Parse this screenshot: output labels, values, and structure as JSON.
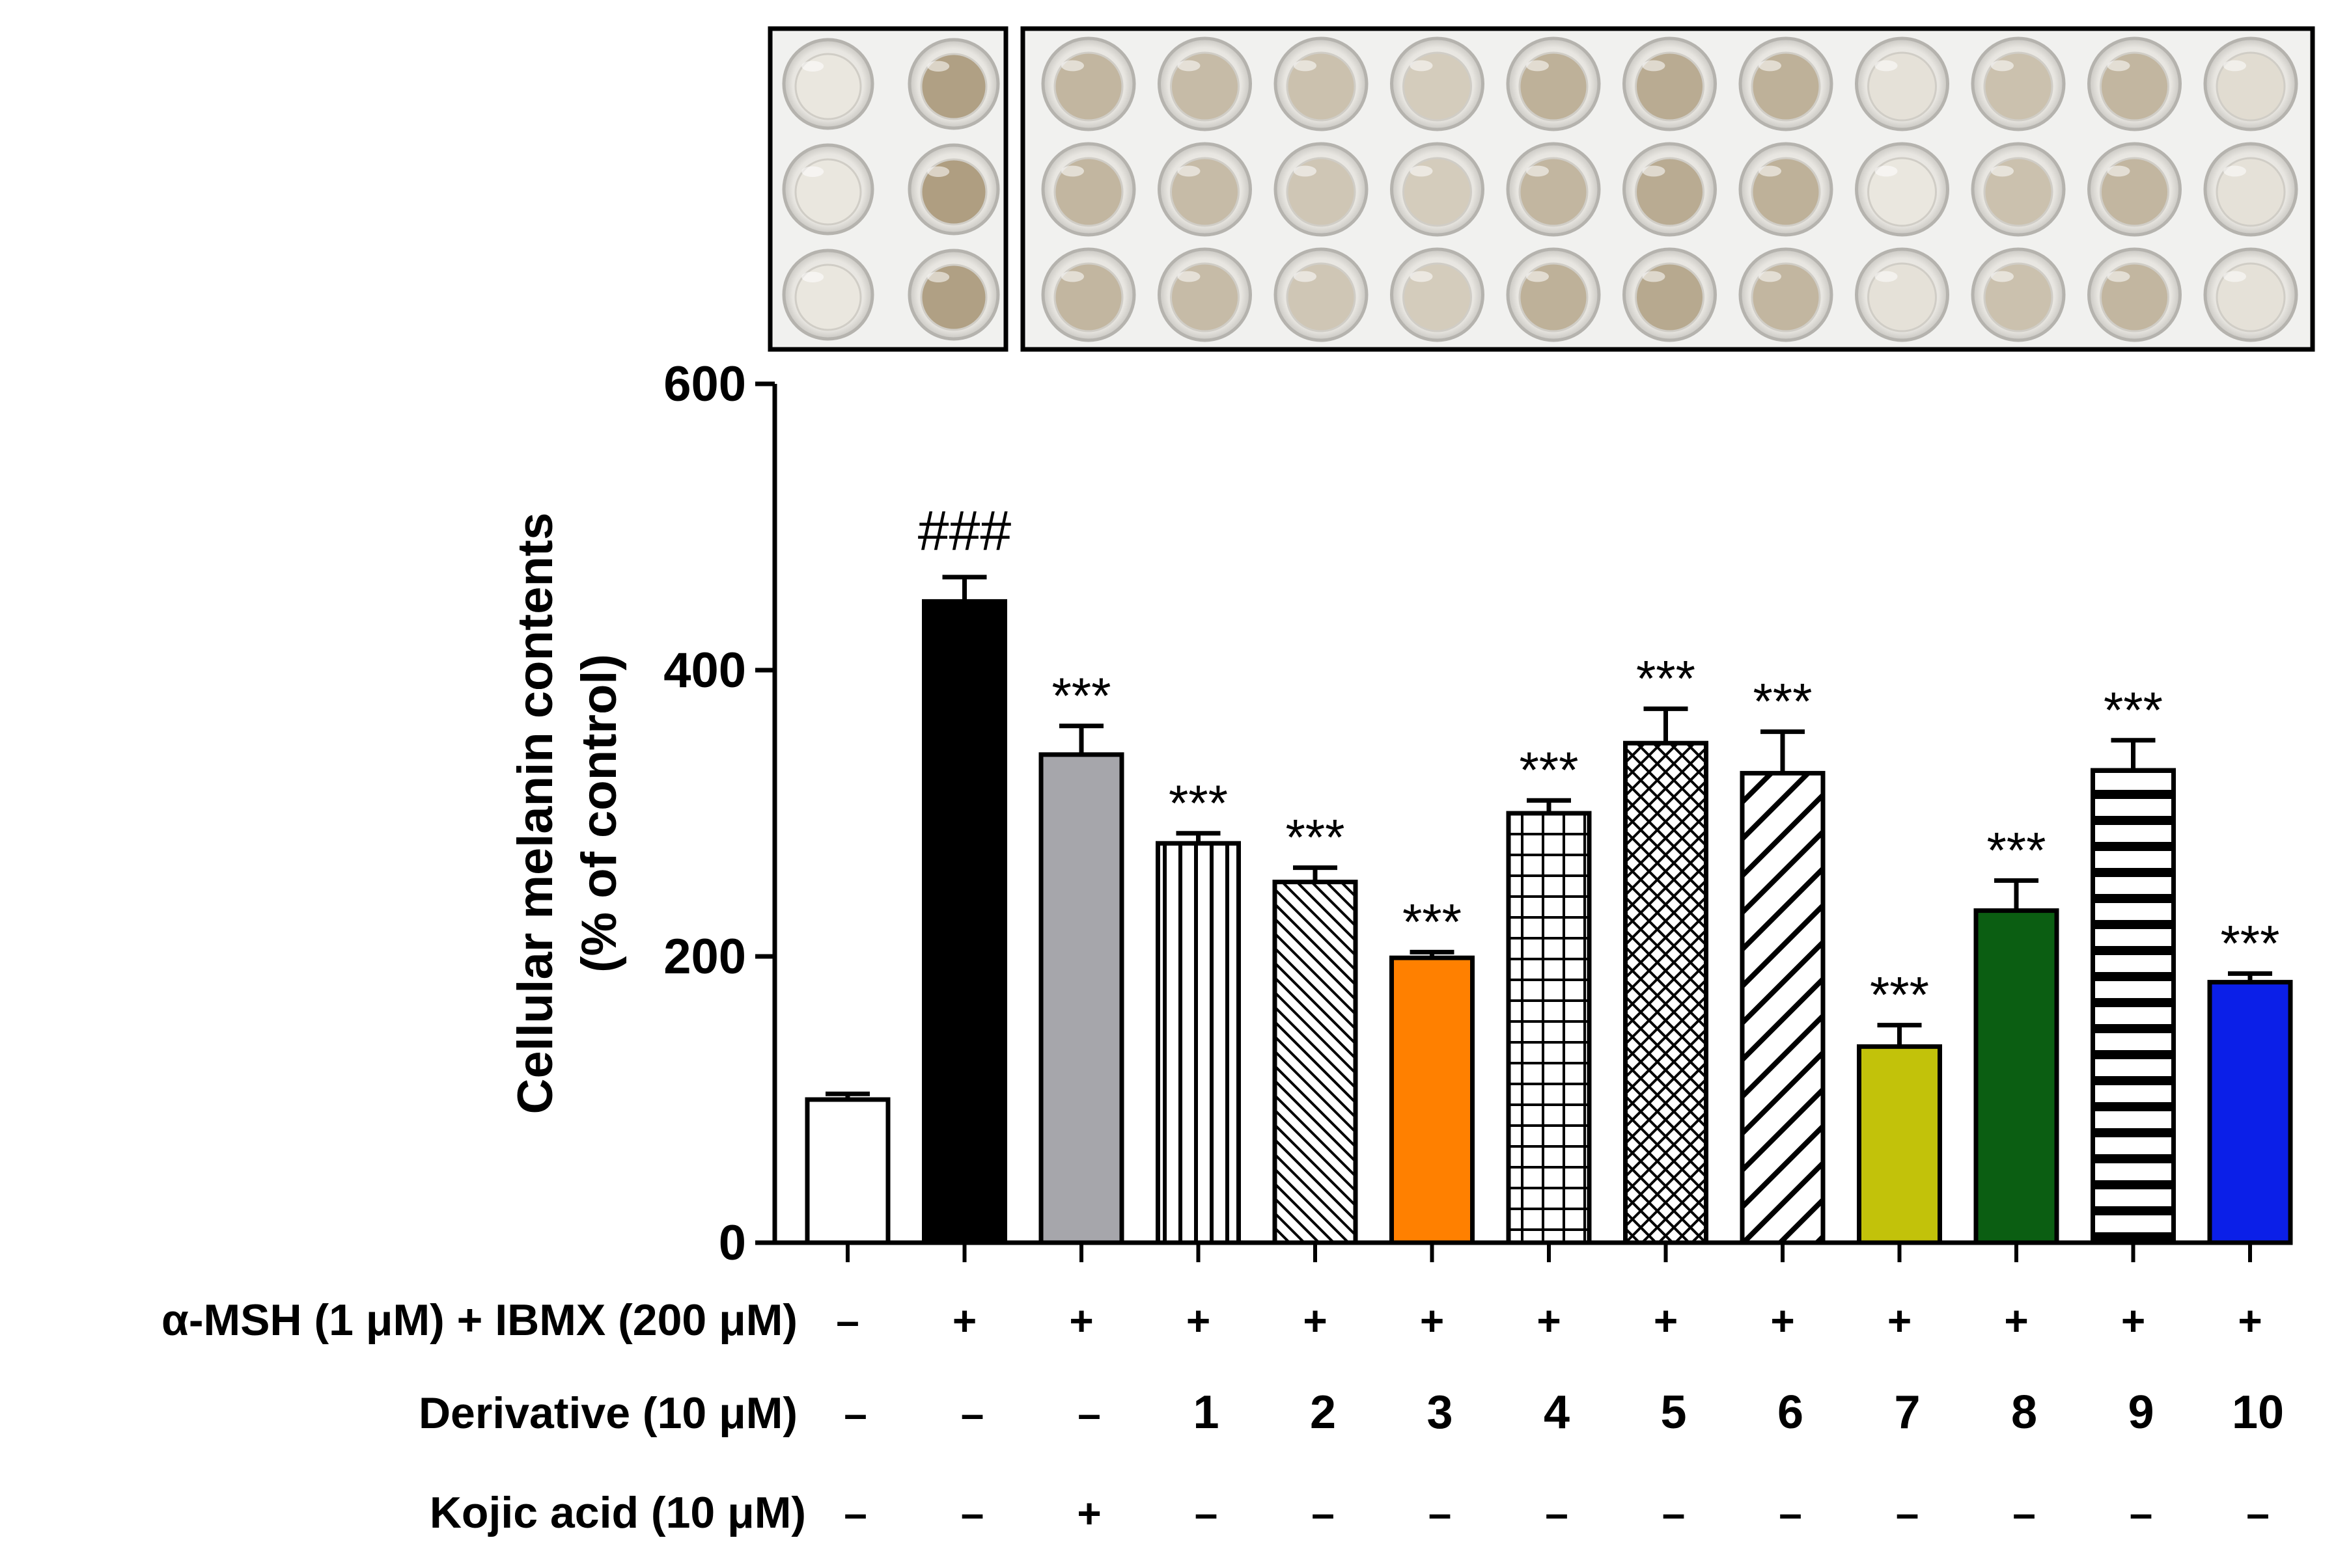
{
  "chart_data": {
    "type": "bar",
    "ylabel_line1": "Cellular melanin contents",
    "ylabel_line2": "(% of control)",
    "ylim": [
      0,
      600
    ],
    "yticks": [
      "0",
      "200",
      "400",
      "600"
    ],
    "values": [
      100,
      448,
      341,
      279,
      252,
      199,
      300,
      349,
      328,
      137,
      232,
      330,
      182
    ],
    "errors": [
      4,
      17,
      20,
      7,
      10,
      4,
      9,
      24,
      29,
      15,
      21,
      21,
      6
    ],
    "significance": [
      "",
      "###",
      "***",
      "***",
      "***",
      "***",
      "***",
      "***",
      "***",
      "***",
      "***",
      "***",
      "***"
    ],
    "fills": [
      "white",
      "black",
      "gray",
      "vlines",
      "diag-fine",
      "orange",
      "grid",
      "cross-hatch",
      "diag-wide",
      "yellow",
      "green",
      "hlines",
      "blue"
    ],
    "colors": {
      "black": "#000000",
      "gray": "#a6a6ab",
      "orange": "#ff8000",
      "yellow": "#c2c20a",
      "green": "#0b5e12",
      "blue": "#0b1fe8"
    },
    "treatment_rows": [
      {
        "label": "α-MSH (1 μM) + IBMX (200 μM)",
        "values": [
          "–",
          "+",
          "+",
          "+",
          "+",
          "+",
          "+",
          "+",
          "+",
          "+",
          "+",
          "+",
          "+"
        ]
      },
      {
        "label": "Derivative (10 μM)",
        "values": [
          "–",
          "–",
          "–",
          "1",
          "2",
          "3",
          "4",
          "5",
          "6",
          "7",
          "8",
          "9",
          "10"
        ]
      },
      {
        "label": "Kojic acid (10 μM)",
        "values": [
          "–",
          "–",
          "+",
          "–",
          "–",
          "–",
          "–",
          "–",
          "–",
          "–",
          "–",
          "–",
          "–"
        ]
      }
    ],
    "well_photo": {
      "left_panel_wells": [
        [
          0.05,
          0.7
        ],
        [
          0.05,
          0.72
        ],
        [
          0.05,
          0.7
        ]
      ],
      "right_panel_wells": [
        [
          0.5,
          0.45,
          0.4,
          0.3,
          0.55,
          0.6,
          0.55,
          0.1,
          0.4,
          0.5,
          0.15
        ],
        [
          0.5,
          0.45,
          0.35,
          0.3,
          0.5,
          0.6,
          0.55,
          0.05,
          0.4,
          0.5,
          0.1
        ],
        [
          0.5,
          0.45,
          0.35,
          0.3,
          0.55,
          0.62,
          0.5,
          0.1,
          0.4,
          0.5,
          0.1
        ]
      ]
    }
  }
}
